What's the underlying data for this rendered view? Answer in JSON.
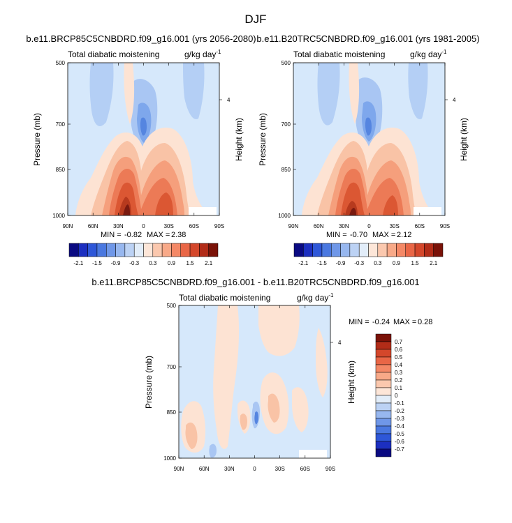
{
  "page": {
    "title": "DJF"
  },
  "colors": {
    "positive": "#d94a1f",
    "negative": "#4a78e0",
    "background": "#d6e8fb"
  },
  "chart_data": [
    {
      "type": "heatmap",
      "panel": "top-left",
      "title": "b.e11.BRCP85C5CNBDRD.f09_g16.001 (yrs 2056-2080)",
      "left_label": "Total diabatic moistening",
      "units_base": "g/kg day",
      "units_exp": "-1",
      "ylabel": "Pressure (mb)",
      "ylabel_right": "Height (km)",
      "xticks": [
        "90N",
        "60N",
        "30N",
        "0",
        "30S",
        "60S",
        "90S"
      ],
      "yticks": [
        "500",
        "700",
        "850",
        "1000"
      ],
      "right_ticks": [
        "4"
      ],
      "min_label": "MIN =",
      "min_value": "-0.82",
      "max_label": "MAX =",
      "max_value": "2.38",
      "colorbar": {
        "orientation": "horizontal",
        "labels": [
          "-2.1",
          "-1.5",
          "-0.9",
          "-0.3",
          "0.3",
          "0.9",
          "1.5",
          "2.1"
        ]
      }
    },
    {
      "type": "heatmap",
      "panel": "top-right",
      "title": "b.e11.B20TRC5CNBDRD.f09_g16.001 (yrs 1981-2005)",
      "left_label": "Total diabatic moistening",
      "units_base": "g/kg day",
      "units_exp": "-1",
      "ylabel": "Pressure (mb)",
      "ylabel_right": "Height (km)",
      "xticks": [
        "90N",
        "60N",
        "30N",
        "0",
        "30S",
        "60S",
        "90S"
      ],
      "yticks": [
        "500",
        "700",
        "850",
        "1000"
      ],
      "right_ticks": [
        "4"
      ],
      "min_label": "MIN =",
      "min_value": "-0.70",
      "max_label": "MAX =",
      "max_value": "2.12",
      "colorbar": {
        "orientation": "horizontal",
        "labels": [
          "-2.1",
          "-1.5",
          "-0.9",
          "-0.3",
          "0.3",
          "0.9",
          "1.5",
          "2.1"
        ]
      }
    },
    {
      "type": "heatmap",
      "panel": "bottom",
      "title": "b.e11.BRCP85C5CNBDRD.f09_g16.001 - b.e11.B20TRC5CNBDRD.f09_g16.001",
      "left_label": "Total diabatic moistening",
      "units_base": "g/kg day",
      "units_exp": "-1",
      "ylabel": "Pressure (mb)",
      "ylabel_right": "Height (km)",
      "xticks": [
        "90N",
        "60N",
        "30N",
        "0",
        "30S",
        "60S",
        "90S"
      ],
      "yticks": [
        "500",
        "700",
        "850",
        "1000"
      ],
      "right_ticks": [
        "4"
      ],
      "min_label": "MIN =",
      "min_value": "-0.24",
      "max_label": "MAX =",
      "max_value": "0.28",
      "colorbar": {
        "orientation": "vertical",
        "labels": [
          "0.7",
          "0.6",
          "0.5",
          "0.4",
          "0.3",
          "0.2",
          "0.1",
          "0",
          "-0.1",
          "-0.2",
          "-0.3",
          "-0.4",
          "-0.5",
          "-0.6",
          "-0.7"
        ]
      }
    }
  ]
}
